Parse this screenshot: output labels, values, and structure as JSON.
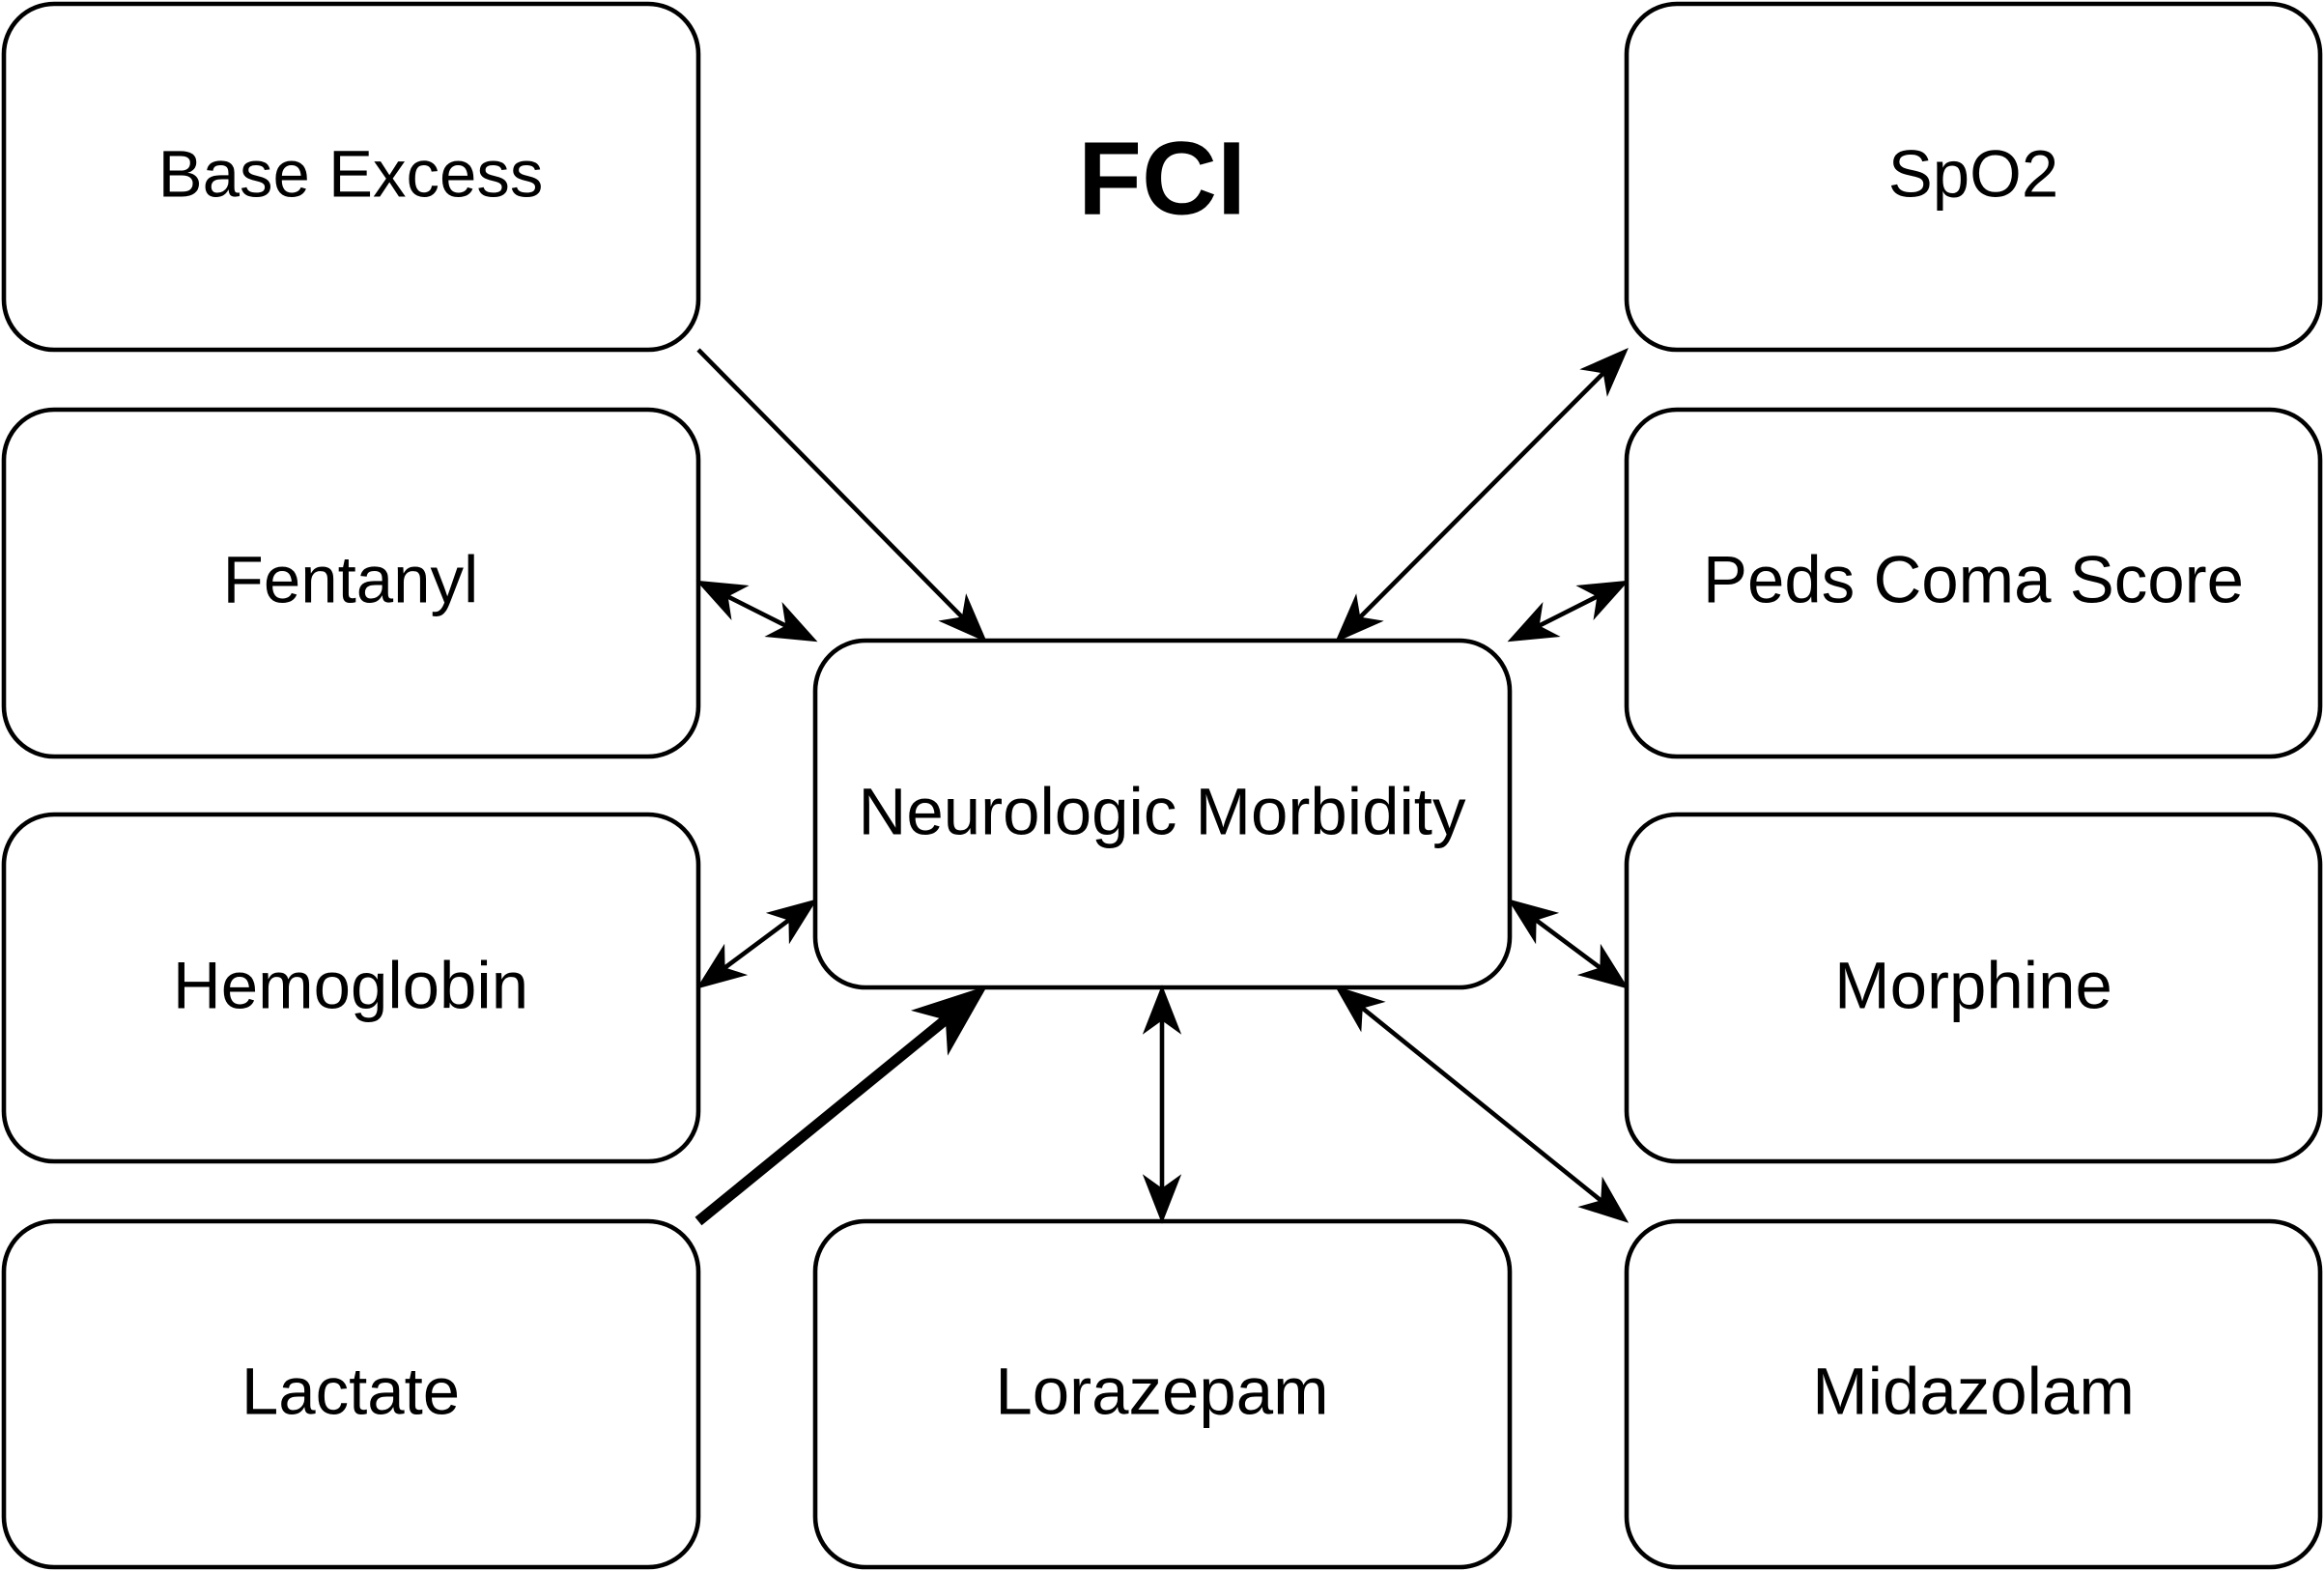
{
  "title": "FCI",
  "center": {
    "label": "Neurologic Morbidity"
  },
  "nodes": {
    "base_excess": "Base Excess",
    "fentanyl": "Fentanyl",
    "hemoglobin": "Hemoglobin",
    "lactate": "Lactate",
    "lorazepam": "Lorazepam",
    "midazolam": "Midazolam",
    "morphine": "Morphine",
    "peds_coma_score": "Peds Coma Score",
    "spo2": "SpO2"
  },
  "edges": [
    {
      "from": "base_excess",
      "to": "center",
      "direction": "one-way",
      "weight": "normal"
    },
    {
      "from": "fentanyl",
      "to": "center",
      "direction": "two-way",
      "weight": "normal"
    },
    {
      "from": "hemoglobin",
      "to": "center",
      "direction": "two-way",
      "weight": "normal"
    },
    {
      "from": "lactate",
      "to": "center",
      "direction": "one-way",
      "weight": "heavy"
    },
    {
      "from": "lorazepam",
      "to": "center",
      "direction": "two-way",
      "weight": "normal"
    },
    {
      "from": "midazolam",
      "to": "center",
      "direction": "two-way",
      "weight": "normal"
    },
    {
      "from": "morphine",
      "to": "center",
      "direction": "two-way",
      "weight": "normal"
    },
    {
      "from": "peds_coma_score",
      "to": "center",
      "direction": "two-way",
      "weight": "normal"
    },
    {
      "from": "spo2",
      "to": "center",
      "direction": "two-way",
      "weight": "normal"
    }
  ],
  "colors": {
    "stroke": "#000000",
    "fill": "#ffffff",
    "text": "#000000"
  }
}
